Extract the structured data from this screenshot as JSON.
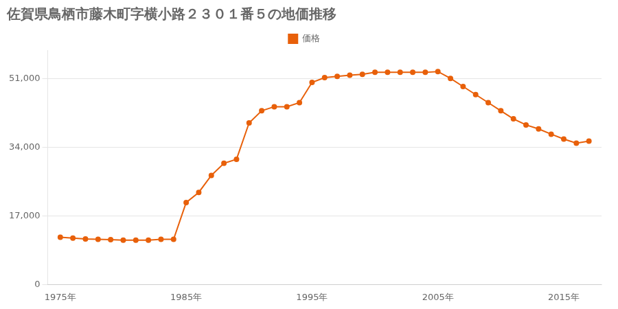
{
  "chart_data": {
    "type": "line",
    "title": "佐賀県鳥栖市藤木町字横小路２３０１番５の地価推移",
    "x": [
      1975,
      1976,
      1977,
      1978,
      1979,
      1980,
      1981,
      1982,
      1983,
      1984,
      1985,
      1986,
      1987,
      1988,
      1989,
      1990,
      1991,
      1992,
      1993,
      1994,
      1995,
      1996,
      1997,
      1998,
      1999,
      2000,
      2001,
      2002,
      2003,
      2004,
      2005,
      2006,
      2007,
      2008,
      2009,
      2010,
      2011,
      2012,
      2013,
      2014,
      2015,
      2016,
      2017
    ],
    "series": [
      {
        "name": "価格",
        "color": "#e8600a",
        "marker": "circle",
        "values": [
          11700,
          11500,
          11300,
          11200,
          11100,
          11000,
          11000,
          11000,
          11200,
          11200,
          20300,
          22800,
          27000,
          30000,
          31000,
          40000,
          43000,
          44000,
          44000,
          45000,
          50000,
          51200,
          51500,
          51800,
          52000,
          52500,
          52500,
          52500,
          52500,
          52500,
          52700,
          51000,
          49000,
          47000,
          45000,
          43000,
          41000,
          39500,
          38500,
          37200,
          36000,
          35000,
          35500
        ]
      }
    ],
    "xlim": [
      1974,
      2018
    ],
    "xticks": [
      {
        "value": 1975,
        "label": "1975年"
      },
      {
        "value": 1985,
        "label": "1985年"
      },
      {
        "value": 1995,
        "label": "1995年"
      },
      {
        "value": 2005,
        "label": "2005年"
      },
      {
        "value": 2015,
        "label": "2015年"
      }
    ],
    "ylim": [
      0,
      58000
    ],
    "yticks": [
      0,
      {
        "value": 17000,
        "label": "17,000"
      },
      {
        "value": 34000,
        "label": "34,000"
      },
      {
        "value": 51000,
        "label": "51,000"
      }
    ],
    "grid": "y",
    "legend": "top"
  }
}
